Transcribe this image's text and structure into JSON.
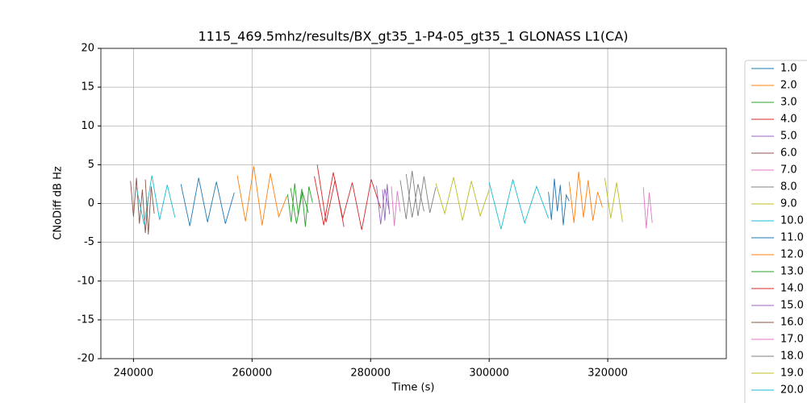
{
  "chart_data": {
    "type": "line",
    "title": "1115_469.5mhz/results/BX_gt35_1-P4-05_gt35_1 GLONASS L1(CA)",
    "x_label": "Time (s)",
    "y_label": "CNoDiff dB Hz",
    "xlim": [
      234500,
      340000
    ],
    "ylim": [
      -20,
      20
    ],
    "xticks": [
      240000,
      260000,
      280000,
      300000,
      320000
    ],
    "yticks": [
      -20,
      -15,
      -10,
      -5,
      0,
      5,
      10,
      15,
      20
    ],
    "grid": true,
    "legend": "right",
    "series": [
      {
        "name": "1.0",
        "color": "#1f77b4",
        "x": [
          310000,
          310500,
          311000,
          311500,
          312000,
          312500,
          313000,
          313500
        ],
        "values": [
          1.5,
          -2.1,
          3.2,
          -1.0,
          2.4,
          -2.8,
          1.1,
          0.3
        ]
      },
      {
        "name": "2.0",
        "color": "#ff7f0e",
        "x": [
          313500,
          314300,
          315100,
          315900,
          316700,
          317500,
          318300,
          319100
        ],
        "values": [
          2.8,
          -2.5,
          4.1,
          -1.8,
          3.0,
          -2.2,
          1.5,
          -0.5
        ]
      },
      {
        "name": "3.0",
        "color": "#2ca02c",
        "x": [
          266000,
          266600,
          267200,
          267800,
          268400,
          269000,
          269600,
          270200
        ],
        "values": [
          1.2,
          -2.4,
          2.6,
          -1.5,
          1.9,
          -3.0,
          2.2,
          0.1
        ]
      },
      {
        "name": "4.0",
        "color": "#d62728",
        "x": [
          270500,
          272100,
          273700,
          275300,
          276900,
          278500,
          280100,
          281700
        ],
        "values": [
          3.5,
          -2.8,
          4.0,
          -1.9,
          2.7,
          -3.4,
          3.1,
          -0.6
        ]
      },
      {
        "name": "5.0",
        "color": "#9467bd",
        "x": [
          282000,
          282400,
          282800,
          283200
        ],
        "values": [
          1.8,
          -2.2,
          2.5,
          -1.4
        ]
      },
      {
        "name": "6.0",
        "color": "#8c564b",
        "x": [
          239500,
          240000,
          240500,
          241000,
          241500,
          242000,
          242500
        ],
        "values": [
          2.9,
          -1.7,
          3.3,
          -2.6,
          1.8,
          -3.8,
          0.9
        ]
      },
      {
        "name": "7.0",
        "color": "#e377c2",
        "x": [
          283500,
          284000,
          284500,
          285000
        ],
        "values": [
          2.2,
          -2.9,
          1.6,
          -1.1
        ]
      },
      {
        "name": "8.0",
        "color": "#7f7f7f",
        "x": [
          285000,
          286000,
          287000,
          288000,
          289000,
          290000,
          291000
        ],
        "values": [
          3.0,
          -2.0,
          4.2,
          -1.6,
          3.5,
          -1.2,
          2.1
        ]
      },
      {
        "name": "9.0",
        "color": "#bcbd22",
        "x": [
          291000,
          292500,
          294000,
          295500,
          297000,
          298500,
          300000
        ],
        "values": [
          2.6,
          -1.3,
          3.4,
          -2.2,
          2.9,
          -1.6,
          1.8
        ]
      },
      {
        "name": "10.0",
        "color": "#17becf",
        "x": [
          240500,
          241800,
          243100,
          244400,
          245700,
          247000
        ],
        "values": [
          2.0,
          -2.7,
          3.6,
          -2.1,
          2.4,
          -1.8
        ]
      },
      {
        "name": "11.0",
        "color": "#1f77b4",
        "x": [
          248000,
          249500,
          251000,
          252500,
          254000,
          255500,
          257000
        ],
        "values": [
          2.5,
          -2.9,
          3.3,
          -2.4,
          2.8,
          -2.6,
          1.4
        ]
      },
      {
        "name": "12.0",
        "color": "#ff7f0e",
        "x": [
          257500,
          258900,
          260300,
          261700,
          263100,
          264500,
          265900
        ],
        "values": [
          3.6,
          -2.3,
          4.8,
          -2.8,
          3.9,
          -1.7,
          1.0
        ]
      },
      {
        "name": "13.0",
        "color": "#2ca02c",
        "x": [
          266500,
          267500,
          268500,
          269500
        ],
        "values": [
          2.0,
          -2.6,
          1.5,
          -1.2
        ]
      },
      {
        "name": "14.0",
        "color": "#d62728",
        "x": [
          271000,
          272500,
          274000,
          275500
        ],
        "values": [
          5.0,
          -2.4,
          3.0,
          -3.0
        ]
      },
      {
        "name": "15.0",
        "color": "#9467bd",
        "x": [
          281000,
          281700,
          282400,
          283100
        ],
        "values": [
          2.3,
          -2.7,
          1.9,
          -0.8
        ]
      },
      {
        "name": "16.0",
        "color": "#8c564b",
        "x": [
          242000,
          242500,
          243000,
          243500
        ],
        "values": [
          3.1,
          -4.0,
          2.2,
          -1.3
        ]
      },
      {
        "name": "17.0",
        "color": "#e377c2",
        "x": [
          326000,
          326500,
          327000,
          327500
        ],
        "values": [
          2.1,
          -3.2,
          1.4,
          -2.5
        ]
      },
      {
        "name": "18.0",
        "color": "#7f7f7f",
        "x": [
          286000,
          287000,
          288000,
          289000
        ],
        "values": [
          3.8,
          -1.8,
          2.5,
          -1.0
        ]
      },
      {
        "name": "19.0",
        "color": "#bcbd22",
        "x": [
          319500,
          320500,
          321500,
          322500
        ],
        "values": [
          3.3,
          -1.9,
          2.7,
          -2.4
        ]
      },
      {
        "name": "20.0",
        "color": "#17becf",
        "x": [
          300000,
          302000,
          304000,
          306000,
          308000,
          310000
        ],
        "values": [
          2.7,
          -3.3,
          3.1,
          -2.5,
          2.2,
          -1.9
        ]
      }
    ]
  }
}
